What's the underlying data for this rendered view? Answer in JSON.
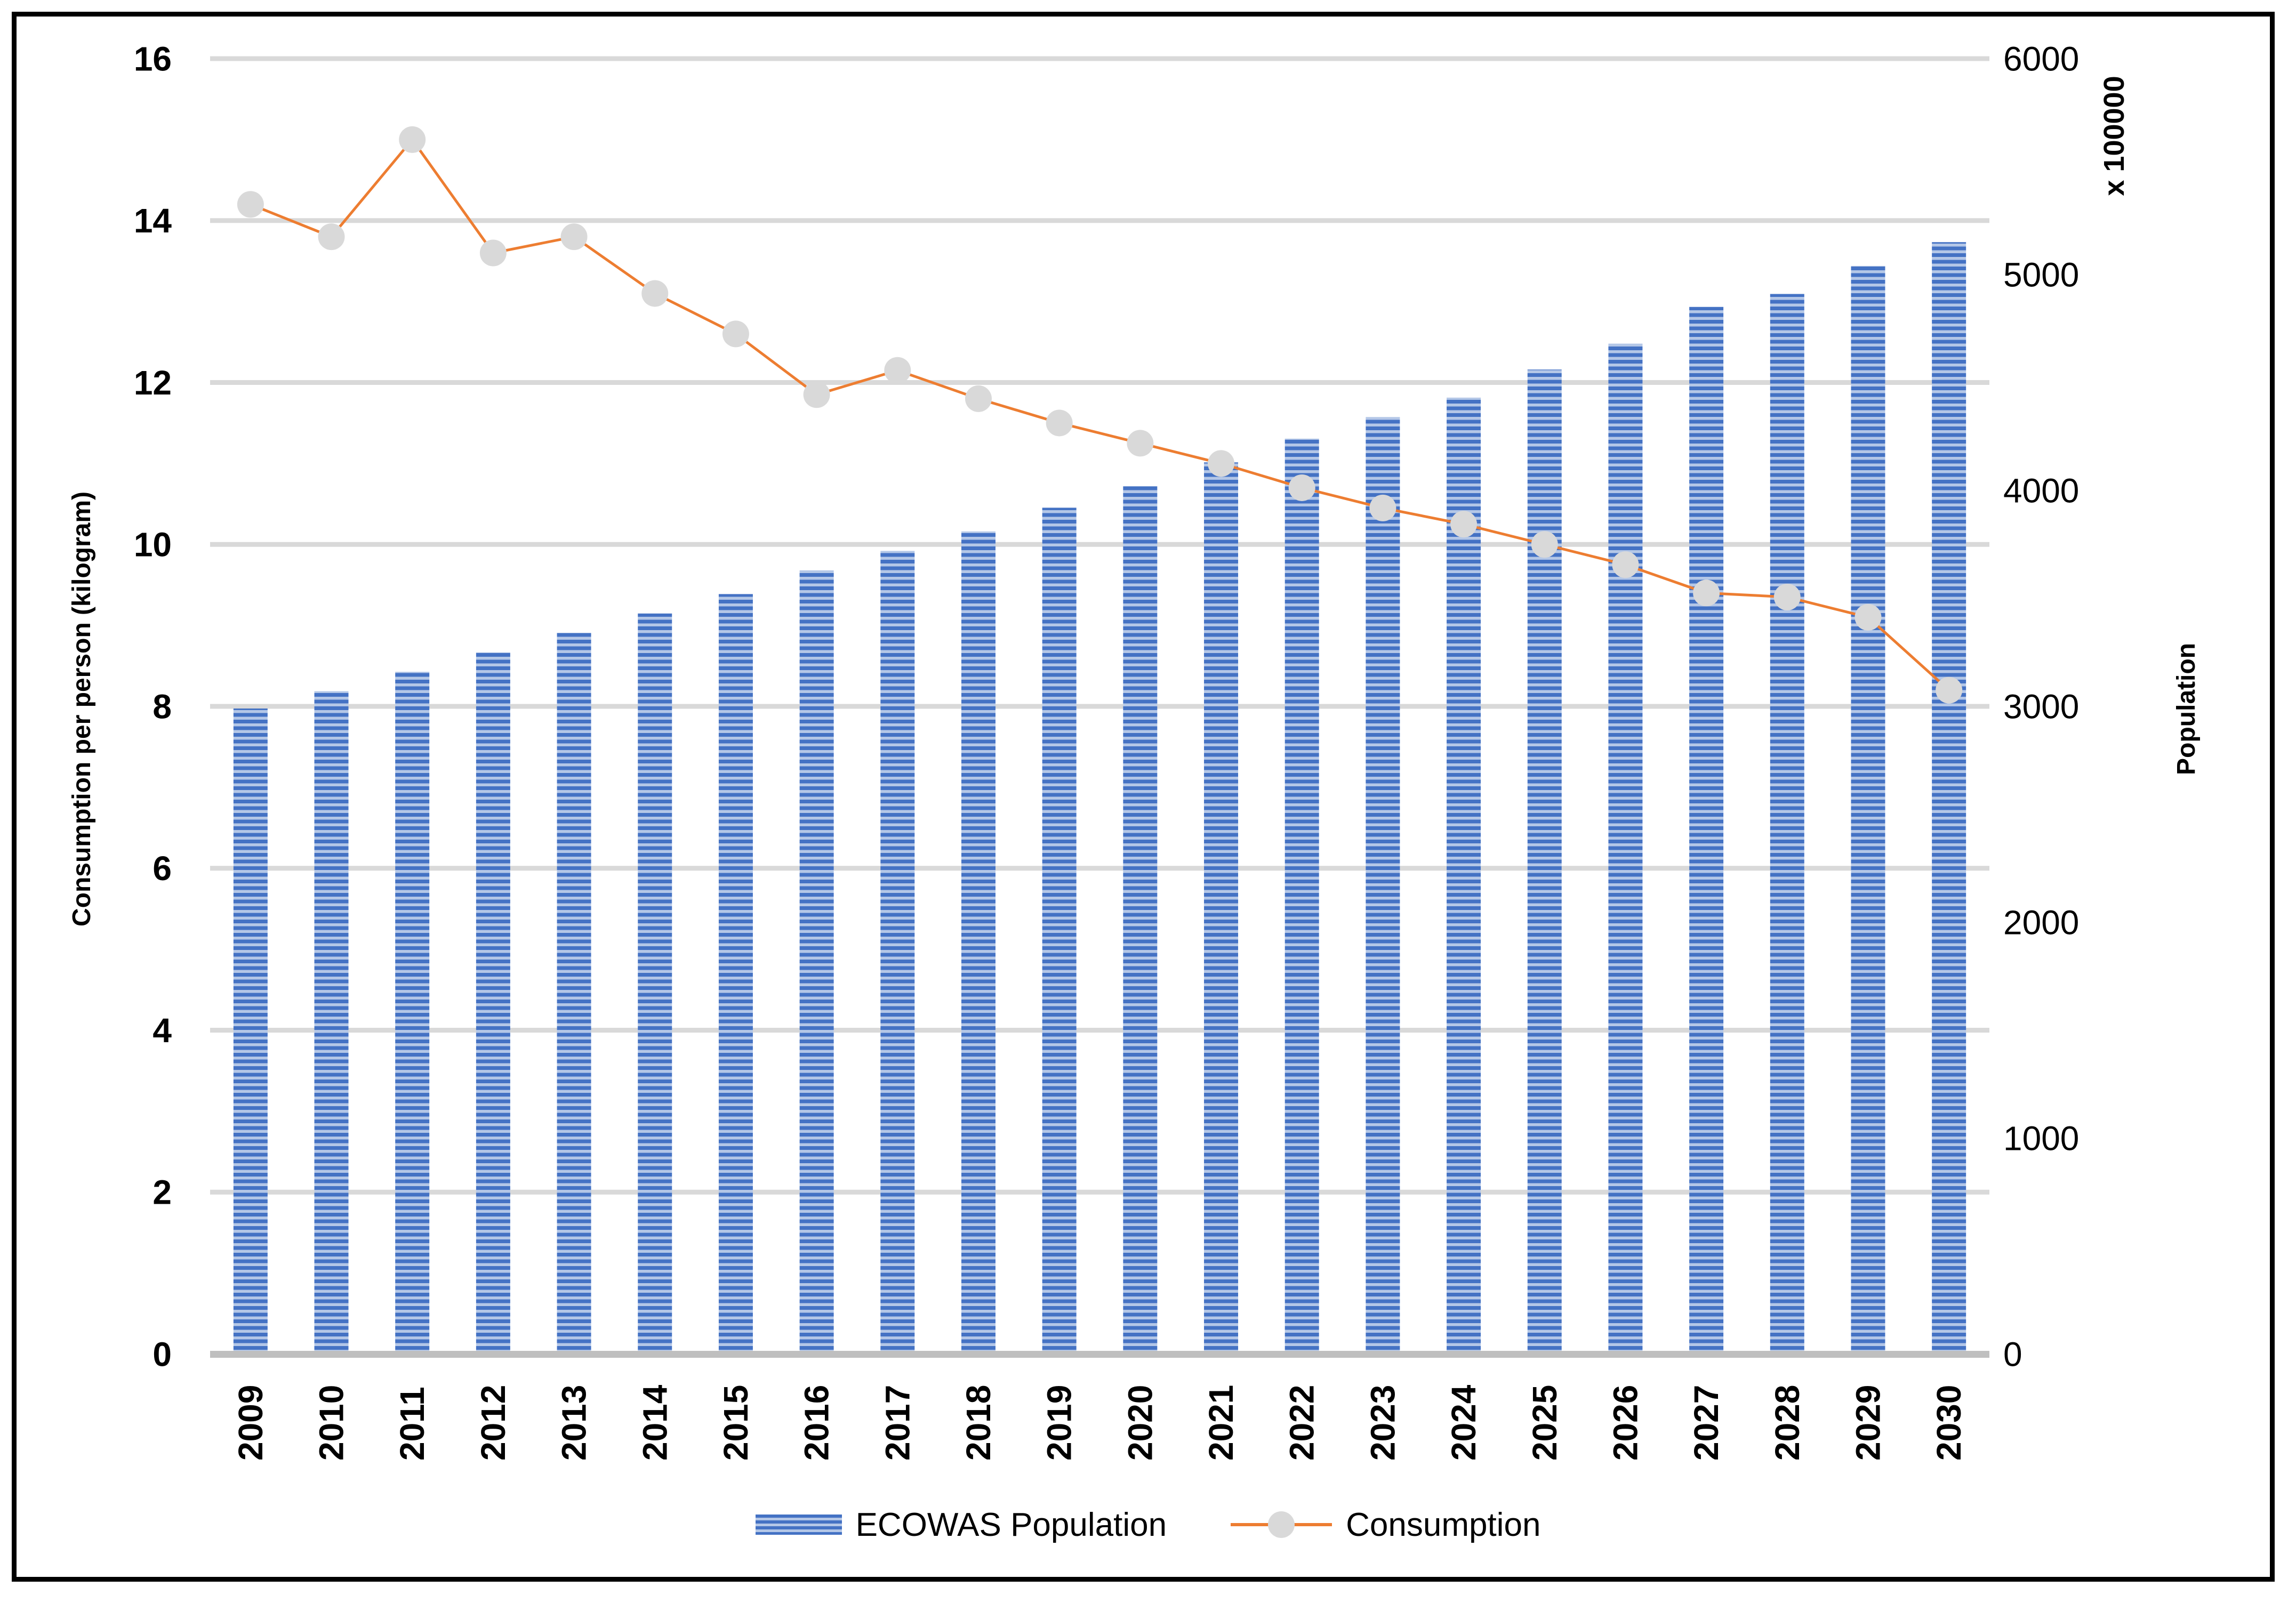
{
  "frame": {
    "border_color": "#000000",
    "background": "#ffffff"
  },
  "chart_data": {
    "type": "combo",
    "categories": [
      "2009",
      "2010",
      "2011",
      "2012",
      "2013",
      "2014",
      "2015",
      "2016",
      "2017",
      "2018",
      "2019",
      "2020",
      "2021",
      "2022",
      "2023",
      "2024",
      "2025",
      "2026",
      "2027",
      "2028",
      "2029",
      "2030"
    ],
    "series": [
      {
        "name": "ECOWAS Population",
        "type": "bar",
        "axis": "right",
        "values": [
          2990,
          3070,
          3160,
          3250,
          3340,
          3430,
          3520,
          3630,
          3720,
          3810,
          3920,
          4020,
          4130,
          4240,
          4340,
          4430,
          4560,
          4680,
          4850,
          4910,
          5040,
          5150
        ]
      },
      {
        "name": "Consumption",
        "type": "line",
        "axis": "left",
        "values": [
          14.2,
          13.8,
          15.0,
          13.6,
          13.8,
          13.1,
          12.6,
          11.85,
          12.15,
          11.8,
          11.5,
          11.25,
          11.0,
          10.7,
          10.45,
          10.25,
          10.0,
          9.75,
          9.4,
          9.35,
          9.1,
          8.2
        ]
      }
    ],
    "left_axis": {
      "title": "Consumption per person (kilogram)",
      "min": 0,
      "max": 16,
      "step": 2,
      "ticks": [
        "0",
        "2",
        "4",
        "6",
        "8",
        "10",
        "12",
        "14",
        "16"
      ]
    },
    "right_axis": {
      "title": "Population",
      "units_label": "x 100000",
      "min": 0,
      "max": 6000,
      "step": 1000,
      "ticks": [
        "0",
        "1000",
        "2000",
        "3000",
        "4000",
        "5000",
        "6000"
      ]
    },
    "legend": [
      {
        "label": "ECOWAS Population"
      },
      {
        "label": "Consumption"
      }
    ],
    "style": {
      "bar_dark": "#4472C4",
      "bar_light": "#B4C7E7",
      "line_color": "#ED7D31",
      "marker_color": "#D9D9D9",
      "gridline_color": "#D9D9D9",
      "axis_line_color": "#BFBFBF",
      "tick_color": "#000000"
    },
    "grid": {
      "horizontal": true,
      "vertical": false
    },
    "legend_position": "bottom"
  }
}
